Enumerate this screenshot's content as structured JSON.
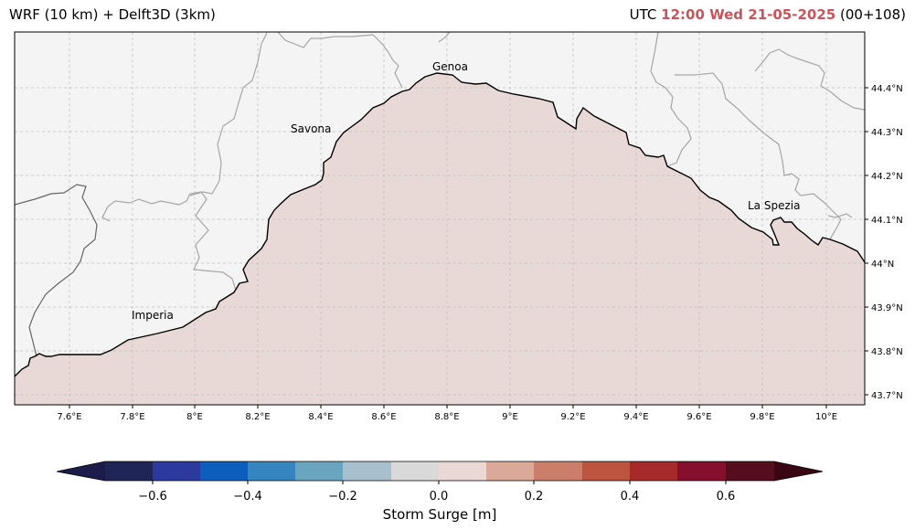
{
  "header": {
    "title": "WRF (10 km) + Delft3D (3km)",
    "utc_label": "UTC",
    "datetime": "12:00 Wed 21-05-2025",
    "lead": "(00+108)"
  },
  "map": {
    "cities": [
      "Genoa",
      "Savona",
      "La Spezia",
      "Imperia"
    ],
    "lon_ticks": [
      "7.6°E",
      "7.8°E",
      "8°E",
      "8.2°E",
      "8.4°E",
      "8.6°E",
      "8.8°E",
      "9°E",
      "9.2°E",
      "9.4°E",
      "9.6°E",
      "9.8°E",
      "10°E"
    ],
    "lat_ticks": [
      "44.4°N",
      "44.3°N",
      "44.2°N",
      "44.1°N",
      "44°N",
      "43.9°N",
      "43.8°N",
      "43.7°N"
    ],
    "sea_value_m": 0.05,
    "colors": {
      "land": "#f4f4f4",
      "sea": "#e8d8d6",
      "coast": "#000000",
      "border": "#a8a8a8"
    }
  },
  "colorbar": {
    "label": "Storm Surge [m]",
    "ticks": [
      "−0.6",
      "−0.4",
      "−0.2",
      "0.0",
      "0.2",
      "0.4",
      "0.6"
    ],
    "colors": [
      "#1b1c4a",
      "#1f2557",
      "#2b3a9c",
      "#0c5fbd",
      "#3585bf",
      "#6aa5c0",
      "#a7c0cd",
      "#d9d9d9",
      "#e9d8d3",
      "#dba99a",
      "#cb7f6a",
      "#bc543f",
      "#a72a2a",
      "#860f2e",
      "#560d1e",
      "#3a0613"
    ]
  }
}
